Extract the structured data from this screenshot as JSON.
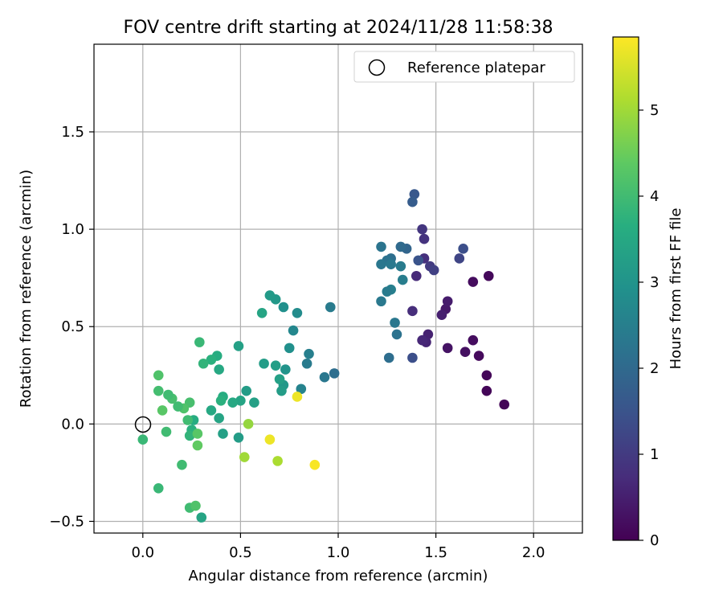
{
  "chart_data": {
    "type": "scatter",
    "title": "FOV centre drift starting at 2024/11/28 11:58:38",
    "xlabel": "Angular distance from reference (arcmin)",
    "ylabel": "Rotation from reference (arcmin)",
    "xlim": [
      -0.25,
      2.25
    ],
    "ylim": [
      -0.56,
      1.95
    ],
    "xticks": [
      0.0,
      0.5,
      1.0,
      1.5,
      2.0
    ],
    "xtick_labels": [
      "0.0",
      "0.5",
      "1.0",
      "1.5",
      "2.0"
    ],
    "yticks": [
      -0.5,
      0.0,
      0.5,
      1.0,
      1.5
    ],
    "ytick_labels": [
      "−0.5",
      "0.0",
      "0.5",
      "1.0",
      "1.5"
    ],
    "grid": true,
    "legend": {
      "placement": "top-right",
      "entries": [
        "Reference platepar"
      ]
    },
    "reference_point": {
      "x": 0.0,
      "y": 0.0
    },
    "colorbar": {
      "label": "Hours from first FF file",
      "range": [
        0,
        5.85
      ],
      "ticks": [
        0,
        1,
        2,
        3,
        4,
        5
      ],
      "colormap": "viridis"
    },
    "points": [
      {
        "x": 1.85,
        "y": 0.1,
        "h": 0.05
      },
      {
        "x": 1.76,
        "y": 0.17,
        "h": 0.08
      },
      {
        "x": 1.76,
        "y": 0.25,
        "h": 0.1
      },
      {
        "x": 1.72,
        "y": 0.35,
        "h": 0.15
      },
      {
        "x": 1.69,
        "y": 0.43,
        "h": 0.2
      },
      {
        "x": 1.65,
        "y": 0.37,
        "h": 0.25
      },
      {
        "x": 1.77,
        "y": 0.76,
        "h": 0.12
      },
      {
        "x": 1.69,
        "y": 0.73,
        "h": 0.18
      },
      {
        "x": 1.56,
        "y": 0.39,
        "h": 0.3
      },
      {
        "x": 1.55,
        "y": 0.59,
        "h": 0.4
      },
      {
        "x": 1.56,
        "y": 0.63,
        "h": 0.45
      },
      {
        "x": 1.53,
        "y": 0.56,
        "h": 0.5
      },
      {
        "x": 1.46,
        "y": 0.46,
        "h": 0.55
      },
      {
        "x": 1.45,
        "y": 0.42,
        "h": 0.6
      },
      {
        "x": 1.43,
        "y": 0.43,
        "h": 0.65
      },
      {
        "x": 1.4,
        "y": 0.76,
        "h": 0.7
      },
      {
        "x": 1.38,
        "y": 0.58,
        "h": 0.75
      },
      {
        "x": 1.44,
        "y": 0.85,
        "h": 0.8
      },
      {
        "x": 1.44,
        "y": 0.95,
        "h": 0.85
      },
      {
        "x": 1.43,
        "y": 1.0,
        "h": 0.9
      },
      {
        "x": 1.47,
        "y": 0.81,
        "h": 1.0
      },
      {
        "x": 1.49,
        "y": 0.79,
        "h": 1.1
      },
      {
        "x": 1.62,
        "y": 0.85,
        "h": 1.2
      },
      {
        "x": 1.64,
        "y": 0.9,
        "h": 1.4
      },
      {
        "x": 1.41,
        "y": 0.84,
        "h": 1.5
      },
      {
        "x": 1.38,
        "y": 0.34,
        "h": 1.4
      },
      {
        "x": 1.39,
        "y": 1.18,
        "h": 1.6
      },
      {
        "x": 1.38,
        "y": 1.14,
        "h": 1.7
      },
      {
        "x": 1.35,
        "y": 0.9,
        "h": 1.9
      },
      {
        "x": 1.32,
        "y": 0.91,
        "h": 2.0
      },
      {
        "x": 1.27,
        "y": 0.85,
        "h": 2.1
      },
      {
        "x": 1.25,
        "y": 0.84,
        "h": 2.2
      },
      {
        "x": 1.22,
        "y": 0.82,
        "h": 2.3
      },
      {
        "x": 1.22,
        "y": 0.91,
        "h": 2.25
      },
      {
        "x": 1.27,
        "y": 0.82,
        "h": 2.35
      },
      {
        "x": 1.32,
        "y": 0.81,
        "h": 2.4
      },
      {
        "x": 1.33,
        "y": 0.74,
        "h": 2.45
      },
      {
        "x": 1.27,
        "y": 0.69,
        "h": 2.5
      },
      {
        "x": 1.25,
        "y": 0.68,
        "h": 2.4
      },
      {
        "x": 1.22,
        "y": 0.63,
        "h": 2.35
      },
      {
        "x": 1.29,
        "y": 0.52,
        "h": 2.3
      },
      {
        "x": 1.3,
        "y": 0.46,
        "h": 2.2
      },
      {
        "x": 1.26,
        "y": 0.34,
        "h": 2.1
      },
      {
        "x": 0.96,
        "y": 0.6,
        "h": 2.4
      },
      {
        "x": 0.98,
        "y": 0.26,
        "h": 2.1
      },
      {
        "x": 0.93,
        "y": 0.24,
        "h": 2.3
      },
      {
        "x": 0.85,
        "y": 0.36,
        "h": 2.5
      },
      {
        "x": 0.84,
        "y": 0.31,
        "h": 2.4
      },
      {
        "x": 0.81,
        "y": 0.18,
        "h": 2.6
      },
      {
        "x": 0.79,
        "y": 0.57,
        "h": 2.8
      },
      {
        "x": 0.77,
        "y": 0.48,
        "h": 2.7
      },
      {
        "x": 0.75,
        "y": 0.39,
        "h": 2.9
      },
      {
        "x": 0.73,
        "y": 0.28,
        "h": 3.0
      },
      {
        "x": 0.72,
        "y": 0.2,
        "h": 3.1
      },
      {
        "x": 0.71,
        "y": 0.17,
        "h": 3.2
      },
      {
        "x": 0.7,
        "y": 0.23,
        "h": 3.3
      },
      {
        "x": 0.68,
        "y": 0.3,
        "h": 3.25
      },
      {
        "x": 0.72,
        "y": 0.6,
        "h": 2.9
      },
      {
        "x": 0.68,
        "y": 0.64,
        "h": 3.1
      },
      {
        "x": 0.65,
        "y": 0.66,
        "h": 3.15
      },
      {
        "x": 0.61,
        "y": 0.57,
        "h": 3.4
      },
      {
        "x": 0.62,
        "y": 0.31,
        "h": 3.2
      },
      {
        "x": 0.57,
        "y": 0.11,
        "h": 3.3
      },
      {
        "x": 0.53,
        "y": 0.17,
        "h": 3.2
      },
      {
        "x": 0.49,
        "y": 0.4,
        "h": 3.3
      },
      {
        "x": 0.5,
        "y": 0.12,
        "h": 3.4
      },
      {
        "x": 0.46,
        "y": 0.11,
        "h": 3.5
      },
      {
        "x": 0.41,
        "y": 0.14,
        "h": 3.6
      },
      {
        "x": 0.4,
        "y": 0.12,
        "h": 3.7
      },
      {
        "x": 0.39,
        "y": 0.28,
        "h": 3.5
      },
      {
        "x": 0.38,
        "y": 0.35,
        "h": 3.6
      },
      {
        "x": 0.35,
        "y": 0.33,
        "h": 3.7
      },
      {
        "x": 0.31,
        "y": 0.31,
        "h": 3.8
      },
      {
        "x": 0.29,
        "y": 0.42,
        "h": 3.9
      },
      {
        "x": 0.35,
        "y": 0.07,
        "h": 3.5
      },
      {
        "x": 0.39,
        "y": 0.03,
        "h": 3.4
      },
      {
        "x": 0.41,
        "y": -0.05,
        "h": 3.3
      },
      {
        "x": 0.49,
        "y": -0.07,
        "h": 3.2
      },
      {
        "x": 0.3,
        "y": -0.48,
        "h": 3.4
      },
      {
        "x": 0.26,
        "y": 0.02,
        "h": 3.6
      },
      {
        "x": 0.25,
        "y": -0.03,
        "h": 3.7
      },
      {
        "x": 0.24,
        "y": -0.06,
        "h": 3.8
      },
      {
        "x": 0.23,
        "y": 0.02,
        "h": 4.0
      },
      {
        "x": 0.24,
        "y": 0.11,
        "h": 4.1
      },
      {
        "x": 0.21,
        "y": 0.08,
        "h": 4.2
      },
      {
        "x": 0.18,
        "y": 0.09,
        "h": 4.0
      },
      {
        "x": 0.15,
        "y": 0.13,
        "h": 4.1
      },
      {
        "x": 0.13,
        "y": 0.15,
        "h": 4.0
      },
      {
        "x": 0.08,
        "y": 0.17,
        "h": 4.05
      },
      {
        "x": 0.08,
        "y": 0.25,
        "h": 4.2
      },
      {
        "x": 0.1,
        "y": 0.07,
        "h": 4.3
      },
      {
        "x": 0.12,
        "y": -0.04,
        "h": 4.0
      },
      {
        "x": 0.0,
        "y": -0.08,
        "h": 3.9
      },
      {
        "x": 0.08,
        "y": -0.33,
        "h": 3.9
      },
      {
        "x": 0.2,
        "y": -0.21,
        "h": 4.0
      },
      {
        "x": 0.24,
        "y": -0.43,
        "h": 4.0
      },
      {
        "x": 0.27,
        "y": -0.42,
        "h": 4.2
      },
      {
        "x": 0.28,
        "y": -0.05,
        "h": 4.3
      },
      {
        "x": 0.28,
        "y": -0.11,
        "h": 4.4
      },
      {
        "x": 0.54,
        "y": 0.0,
        "h": 4.9
      },
      {
        "x": 0.52,
        "y": -0.17,
        "h": 5.0
      },
      {
        "x": 0.69,
        "y": -0.19,
        "h": 5.1
      },
      {
        "x": 0.65,
        "y": -0.08,
        "h": 5.7
      },
      {
        "x": 0.79,
        "y": 0.14,
        "h": 5.7
      },
      {
        "x": 0.88,
        "y": -0.21,
        "h": 5.8
      }
    ]
  }
}
